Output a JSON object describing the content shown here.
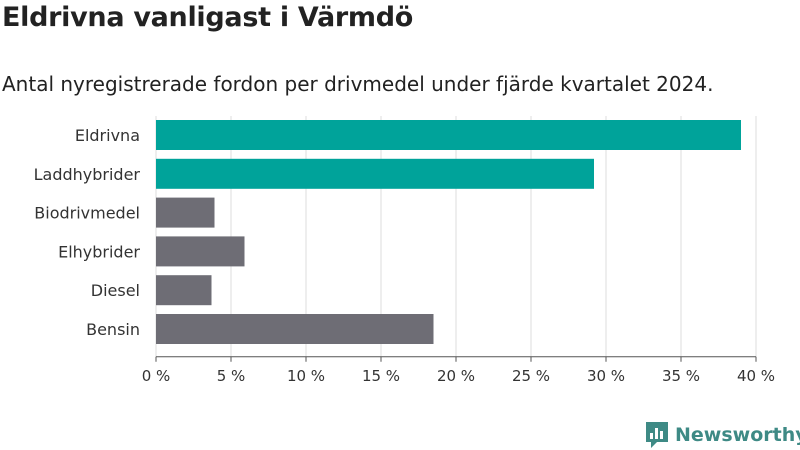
{
  "title": "Eldrivna vanligast i Värmdö",
  "subtitle": "Antal nyregistrerade fordon per drivmedel under fjärde kvartalet 2024.",
  "brand": {
    "name": "Newsworthy",
    "logo_icon": "bar-chart-bubble-icon"
  },
  "colors": {
    "highlight": "#00a39a",
    "other": "#6e6d75",
    "brand": "#3e8a85",
    "grid": "#dddddd"
  },
  "chart_data": {
    "type": "bar",
    "orientation": "horizontal",
    "categories": [
      "Eldrivna",
      "Laddhybrider",
      "Biodrivmedel",
      "Elhybrider",
      "Diesel",
      "Bensin"
    ],
    "values": [
      39,
      29.2,
      3.9,
      5.9,
      3.7,
      18.5
    ],
    "highlighted": [
      true,
      true,
      false,
      false,
      false,
      false
    ],
    "xlim": [
      0,
      40
    ],
    "xticks": [
      0,
      5,
      10,
      15,
      20,
      25,
      30,
      35,
      40
    ],
    "tick_suffix": " %",
    "grid": true,
    "xlabel": "",
    "ylabel": ""
  }
}
